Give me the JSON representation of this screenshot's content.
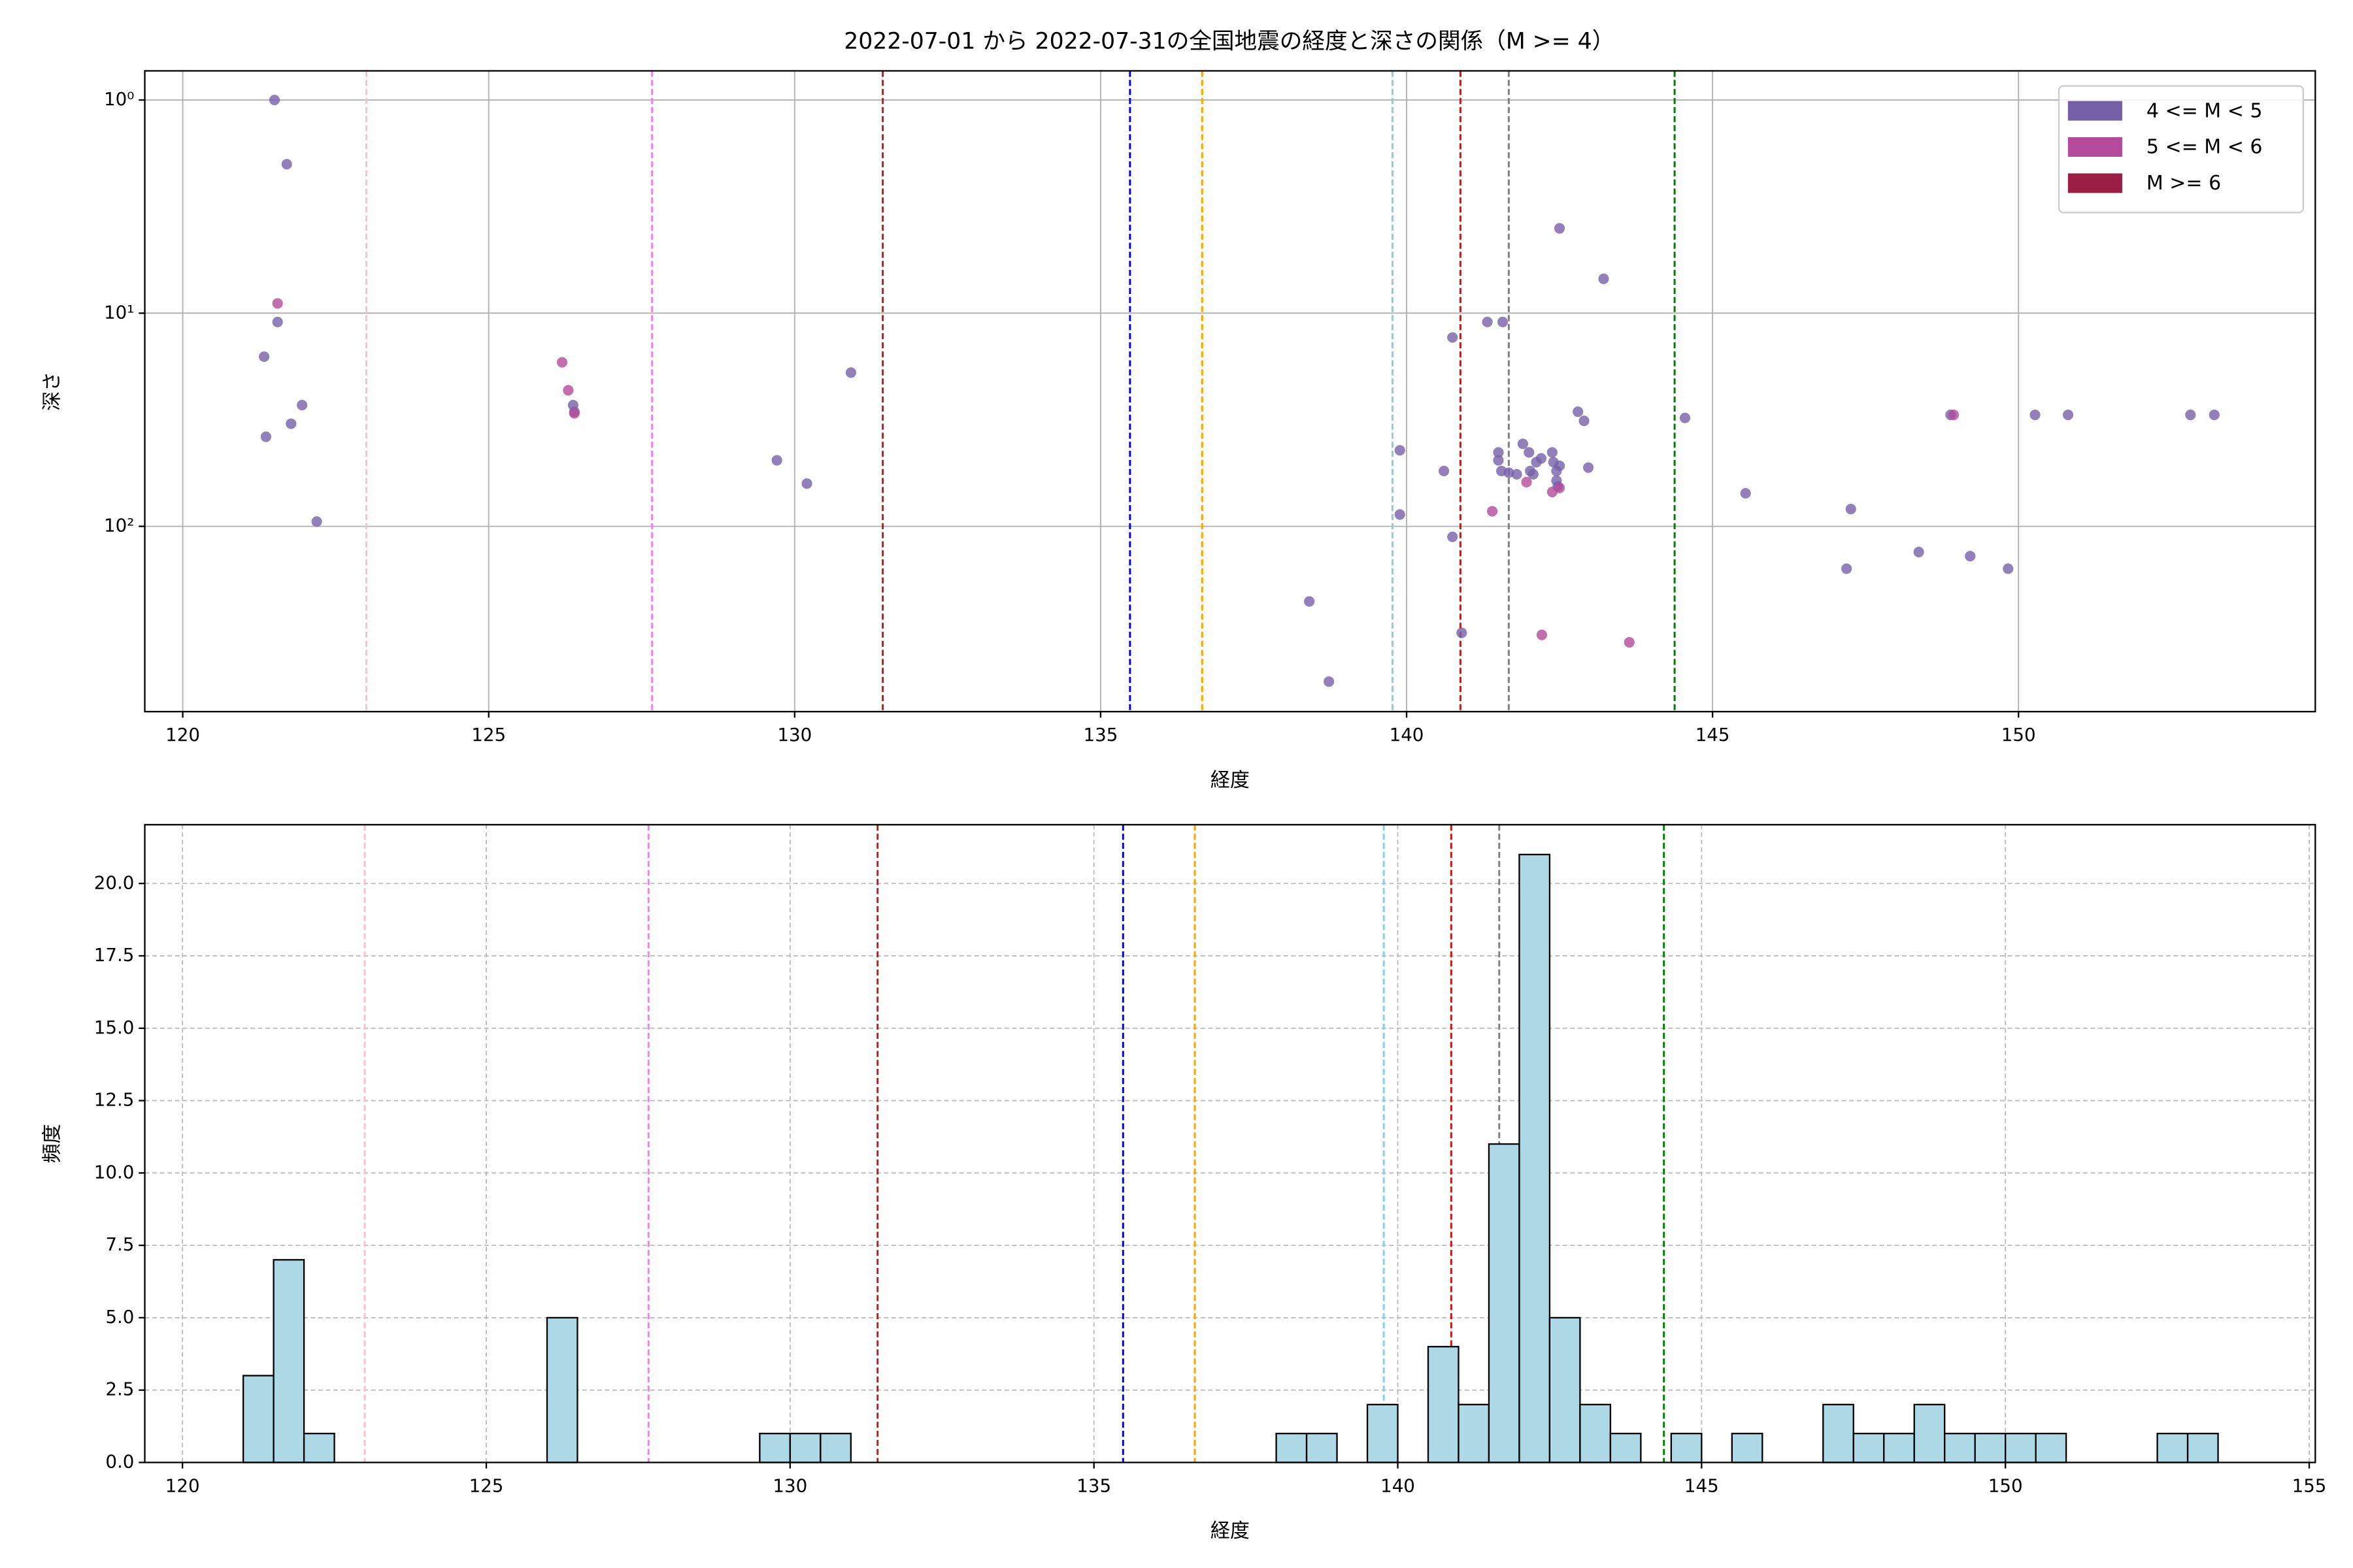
{
  "chart_data": [
    {
      "type": "scatter",
      "title": "2022-07-01 から 2022-07-31の全国地震の経度と深さの関係（M >= 4）",
      "xlabel": "経度",
      "ylabel": "深さ",
      "xlim": [
        119.38,
        154.85
      ],
      "xticks": [
        120,
        125,
        130,
        135,
        140,
        145,
        150
      ],
      "ylim": [
        0.73,
        740
      ],
      "ylog": true,
      "yinverted": true,
      "yticks": [
        {
          "value": 1,
          "label": "10⁰"
        },
        {
          "value": 10,
          "label": "10¹"
        },
        {
          "value": 100,
          "label": "10²"
        }
      ],
      "grid": true,
      "legend": "upper right",
      "vlines": [
        {
          "x": 123.0,
          "color": "pink"
        },
        {
          "x": 127.67,
          "color": "violet"
        },
        {
          "x": 131.44,
          "color": "#b22222"
        },
        {
          "x": 135.48,
          "color": "blue"
        },
        {
          "x": 136.66,
          "color": "orange"
        },
        {
          "x": 139.77,
          "color": "skyblue"
        },
        {
          "x": 140.88,
          "color": "red"
        },
        {
          "x": 141.67,
          "color": "gray"
        },
        {
          "x": 144.38,
          "color": "green"
        }
      ],
      "series": [
        {
          "name": "4 <= M < 5",
          "color": "#7560a8",
          "x": [
            121.5,
            121.7,
            121.55,
            121.33,
            121.95,
            121.77,
            121.36,
            122.19,
            126.38,
            126.4,
            129.71,
            130.2,
            130.92,
            138.41,
            138.73,
            139.89,
            139.89,
            140.61,
            140.75,
            140.75,
            140.9,
            141.32,
            141.57,
            141.5,
            141.5,
            141.55,
            141.67,
            141.8,
            141.9,
            142.0,
            142.12,
            142.2,
            142.07,
            142.02,
            142.38,
            142.4,
            142.45,
            142.45,
            142.47,
            142.5,
            142.5,
            142.8,
            142.9,
            142.97,
            143.22,
            144.55,
            145.54,
            147.26,
            147.19,
            148.37,
            148.89,
            149.21,
            149.83,
            150.27,
            150.81,
            152.81,
            153.2
          ],
          "values": [
            1,
            2.0,
            11,
            16,
            27,
            33,
            38,
            95,
            27,
            29,
            49,
            63,
            19,
            225,
            535,
            44,
            88,
            55,
            112,
            13,
            316,
            11,
            11,
            45,
            49,
            55,
            56,
            57,
            41,
            45,
            50,
            48,
            57,
            55,
            45,
            50,
            55,
            61,
            65,
            52,
            4,
            29,
            32,
            53,
            6.9,
            31,
            70,
            83,
            158,
            132,
            30,
            138,
            158,
            30,
            30,
            30,
            30
          ]
        },
        {
          "name": "5 <= M < 6",
          "color": "#b44a9b",
          "x": [
            121.55,
            126.2,
            126.3,
            126.4,
            141.4,
            141.96,
            142.38,
            142.5,
            142.21,
            143.64,
            148.94
          ],
          "values": [
            9,
            17,
            23,
            29.5,
            85,
            62,
            69,
            66,
            323,
            350,
            30
          ]
        },
        {
          "name": "M >= 6",
          "color": "#9b1f45",
          "x": [],
          "values": []
        }
      ]
    },
    {
      "type": "histogram",
      "xlabel": "経度",
      "ylabel": "頻度",
      "xlim": [
        119.38,
        155.1
      ],
      "xticks": [
        120,
        125,
        130,
        135,
        140,
        145,
        150,
        155
      ],
      "ylim": [
        0,
        22.03
      ],
      "yticks": [
        {
          "value": 0,
          "label": "0.0"
        },
        2.5,
        {
          "value": 5,
          "label": "5.0"
        },
        7.5,
        {
          "value": 10,
          "label": "10.0"
        },
        12.5,
        {
          "value": 15,
          "label": "15.0"
        },
        17.5,
        {
          "value": 20,
          "label": "20.0"
        }
      ],
      "grid": true,
      "grid_linestyle": "dashed",
      "color": "#add8e6",
      "edgecolor": "black",
      "vlines": [
        {
          "x": 123.0,
          "color": "pink"
        },
        {
          "x": 127.67,
          "color": "violet"
        },
        {
          "x": 131.44,
          "color": "#b22222"
        },
        {
          "x": 135.48,
          "color": "blue"
        },
        {
          "x": 136.66,
          "color": "orange"
        },
        {
          "x": 139.77,
          "color": "skyblue"
        },
        {
          "x": 140.88,
          "color": "red"
        },
        {
          "x": 141.67,
          "color": "gray"
        },
        {
          "x": 144.38,
          "color": "green"
        }
      ],
      "bins": [
        121,
        121.5,
        122,
        122.5,
        123,
        123.5,
        124,
        124.5,
        125,
        125.5,
        126,
        126.5,
        127,
        127.5,
        128,
        128.5,
        129,
        129.5,
        130,
        130.5,
        131,
        131.5,
        132,
        132.5,
        133,
        133.5,
        134,
        134.5,
        135,
        135.5,
        136,
        136.5,
        137,
        137.5,
        138,
        138.5,
        139,
        139.5,
        140,
        140.5,
        141,
        141.5,
        142,
        142.5,
        143,
        143.5,
        144,
        144.5,
        145,
        145.5,
        146,
        146.5,
        147,
        147.5,
        148,
        148.5,
        149,
        149.5,
        150,
        150.5,
        151,
        151.5,
        152,
        152.5,
        153,
        153.5
      ],
      "counts": [
        3,
        7,
        1,
        0,
        0,
        0,
        0,
        0,
        0,
        0,
        5,
        0,
        0,
        0,
        0,
        0,
        0,
        1,
        1,
        1,
        0,
        0,
        0,
        0,
        0,
        0,
        0,
        0,
        0,
        0,
        0,
        0,
        0,
        0,
        1,
        1,
        0,
        2,
        0,
        4,
        2,
        11,
        21,
        5,
        2,
        1,
        0,
        1,
        0,
        1,
        0,
        0,
        2,
        1,
        1,
        2,
        1,
        1,
        1,
        1,
        0,
        0,
        0,
        1,
        1
      ]
    }
  ]
}
